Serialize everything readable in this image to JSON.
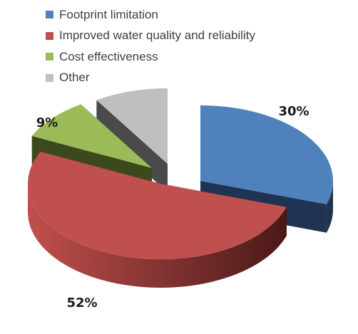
{
  "chart_data": {
    "type": "pie",
    "variant": "3d-exploded",
    "categories": [
      "Footprint limitation",
      "Improved water quality and reliability",
      "Cost effectiveness",
      "Other"
    ],
    "values": [
      30,
      52,
      9,
      9
    ],
    "data_labels": [
      "30%",
      "52%",
      "9%",
      ""
    ],
    "colors": [
      "#4f81bd",
      "#c0504d",
      "#9bbb59",
      "#bfbfbf"
    ],
    "side_colors": [
      "#1f3352",
      "#4a1818",
      "#3a4a1c",
      "#4a4a4a"
    ],
    "legend": {
      "position": "top-left",
      "entries": [
        "Footprint limitation",
        "Improved water quality and reliability",
        "Cost effectiveness",
        "Other"
      ]
    },
    "title": ""
  }
}
